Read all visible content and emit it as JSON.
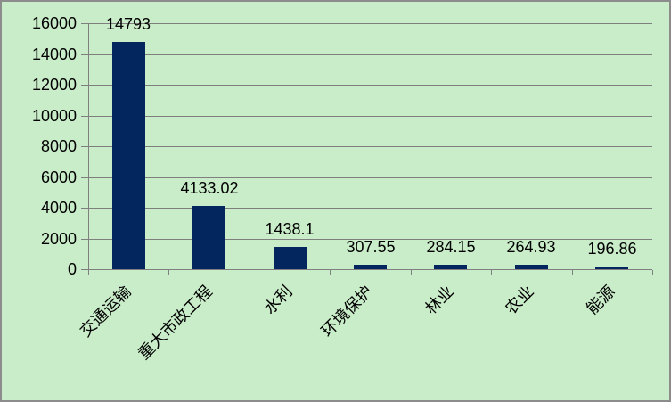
{
  "chart_data": {
    "type": "bar",
    "categories": [
      "交通运输",
      "重大市政工程",
      "水利",
      "环境保护",
      "林业",
      "农业",
      "能源"
    ],
    "values": [
      14793,
      4133.02,
      1438.1,
      307.55,
      284.15,
      264.93,
      196.86
    ],
    "value_labels": [
      "14793",
      "4133.02",
      "1438.1",
      "307.55",
      "284.15",
      "264.93",
      "196.86"
    ],
    "title": "",
    "xlabel": "",
    "ylabel": "",
    "ylim": [
      0,
      16000
    ],
    "ytick_interval": 2000,
    "ytick_labels": [
      "0",
      "2000",
      "4000",
      "6000",
      "8000",
      "10000",
      "12000",
      "14000",
      "16000"
    ],
    "grid": true,
    "legend": false,
    "colors": {
      "bar": "#04265f",
      "background": "#c9ecc9",
      "gridline": "#7f7f7f",
      "axis": "#7f7f7f",
      "text": "#000000",
      "border": "#8c8c8c"
    }
  }
}
